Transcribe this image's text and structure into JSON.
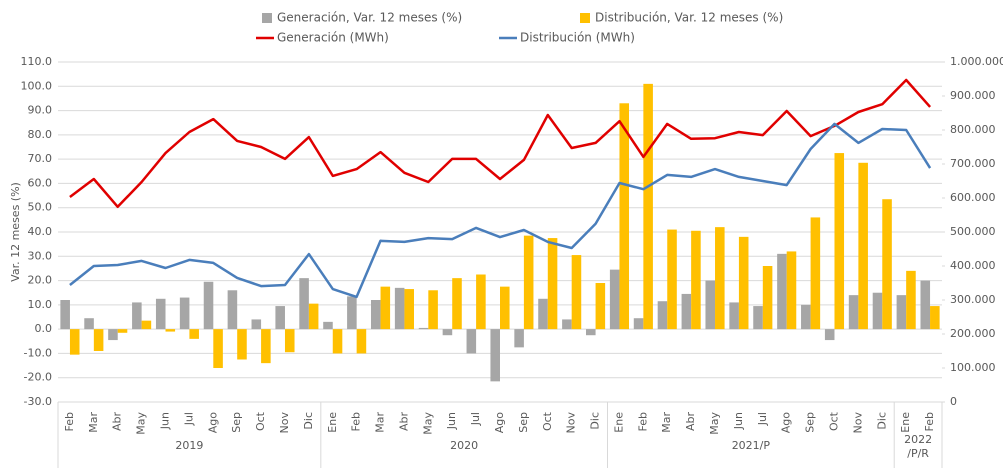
{
  "chart_data": {
    "type": "bar_line",
    "y_label": "Var. 12 meses (%)",
    "categories": [
      "Feb",
      "Mar",
      "Abr",
      "May",
      "Jun",
      "Jul",
      "Ago",
      "Sep",
      "Oct",
      "Nov",
      "Dic",
      "Ene",
      "Feb",
      "Mar",
      "Abr",
      "May",
      "Jun",
      "Jul",
      "Ago",
      "Sep",
      "Oct",
      "Nov",
      "Dic",
      "Ene",
      "Feb",
      "Mar",
      "Abr",
      "May",
      "Jun",
      "Jul",
      "Ago",
      "Sep",
      "Oct",
      "Nov",
      "Dic",
      "Ene",
      "Feb"
    ],
    "groups": [
      {
        "label": [
          "2019"
        ],
        "count": 11
      },
      {
        "label": [
          "2020"
        ],
        "count": 12
      },
      {
        "label": [
          "2021/P"
        ],
        "count": 12
      },
      {
        "label": [
          "2022",
          "/P/R"
        ],
        "count": 2
      }
    ],
    "series": [
      {
        "name": "Generación, Var. 12 meses (%)",
        "color": "#a6a6a6",
        "kind": "bar",
        "values": [
          12,
          4.5,
          -4.5,
          11,
          12.5,
          13,
          19.5,
          16,
          4,
          9.5,
          21,
          3,
          13.5,
          12,
          17,
          0.5,
          -2.5,
          -10,
          -21.5,
          -7.5,
          12.5,
          4,
          -2.5,
          24.5,
          4.5,
          11.5,
          14.5,
          20,
          11,
          9.5,
          31,
          10,
          -4.5,
          14,
          15,
          14,
          20
        ]
      },
      {
        "name": "Distribución, Var. 12 meses (%)",
        "color": "#ffc000",
        "kind": "bar",
        "values": [
          -10.5,
          -9,
          -1.5,
          3.5,
          -1,
          -4,
          -16,
          -12.5,
          -14,
          -9.5,
          10.5,
          -10,
          -10,
          17.5,
          16.5,
          16,
          21,
          22.5,
          17.5,
          38.5,
          37.5,
          30.5,
          19,
          93,
          101,
          41,
          40.5,
          42,
          38,
          26,
          32,
          46,
          72.5,
          68.5,
          53.5,
          24,
          9.5
        ]
      },
      {
        "name": "Generación (MWh)",
        "color": "#e00000",
        "kind": "line",
        "axis": "y2",
        "values": [
          603000,
          656000,
          574000,
          647000,
          732000,
          794000,
          832000,
          768000,
          750000,
          715000,
          779000,
          665000,
          685000,
          735000,
          674000,
          647000,
          715000,
          715000,
          656000,
          712000,
          844000,
          747000,
          762000,
          826000,
          721000,
          818000,
          774000,
          776000,
          794000,
          785000,
          856000,
          782000,
          812000,
          853000,
          876000,
          947000,
          868000
        ]
      },
      {
        "name": "Distribución (MWh)",
        "color": "#4a7ebb",
        "kind": "line",
        "axis": "y2",
        "values": [
          344000,
          400000,
          403000,
          415000,
          394000,
          418000,
          409000,
          365000,
          341000,
          344000,
          435000,
          332000,
          309000,
          474000,
          471000,
          482000,
          479000,
          512000,
          485000,
          506000,
          471000,
          453000,
          524000,
          644000,
          626000,
          668000,
          662000,
          685000,
          662000,
          650000,
          638000,
          744000,
          818000,
          762000,
          803000,
          800000,
          688000
        ]
      }
    ],
    "ylim": [
      -30,
      110
    ],
    "yticks": [
      {
        "value": -30,
        "label": "-30.0"
      },
      {
        "value": -20,
        "label": "-20.0"
      },
      {
        "value": -10,
        "label": "-10.0"
      },
      {
        "value": 0,
        "label": "0.0"
      },
      {
        "value": 10,
        "label": "10.0"
      },
      {
        "value": 20,
        "label": "20.0"
      },
      {
        "value": 30,
        "label": "30.0"
      },
      {
        "value": 40,
        "label": "40.0"
      },
      {
        "value": 50,
        "label": "50.0"
      },
      {
        "value": 60,
        "label": "60.0"
      },
      {
        "value": 70,
        "label": "70.0"
      },
      {
        "value": 80,
        "label": "80.0"
      },
      {
        "value": 90,
        "label": "90.0"
      },
      {
        "value": 100,
        "label": "100.0"
      },
      {
        "value": 110,
        "label": "110.0"
      }
    ],
    "y2lim": [
      0,
      1000000
    ],
    "y2ticks": [
      0,
      {
        "value": 100000,
        "label": "100.000"
      },
      {
        "value": 200000,
        "label": "200.000"
      },
      {
        "value": 300000,
        "label": "300.000"
      },
      {
        "value": 400000,
        "label": "400.000"
      },
      {
        "value": 500000,
        "label": "500.000"
      },
      {
        "value": 600000,
        "label": "600.000"
      },
      {
        "value": 700000,
        "label": "700.000"
      },
      {
        "value": 800000,
        "label": "800.000"
      },
      {
        "value": 900000,
        "label": "900.000"
      },
      {
        "value": 1000000,
        "label": "1.000.000"
      }
    ],
    "grid": true
  }
}
